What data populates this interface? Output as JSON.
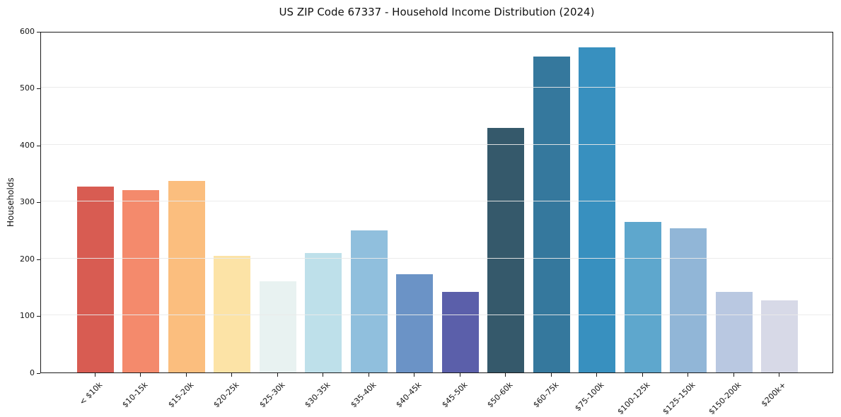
{
  "chart_data": {
    "type": "bar",
    "title": "US ZIP Code 67337 - Household Income Distribution (2024)",
    "xlabel": "",
    "ylabel": "Households",
    "categories": [
      "< $10k",
      "$10-15k",
      "$15-20k",
      "$20-25k",
      "$25-30k",
      "$30-35k",
      "$35-40k",
      "$40-45k",
      "$45-50k",
      "$50-60k",
      "$60-75k",
      "$75-100k",
      "$100-125k",
      "$125-150k",
      "$150-200k",
      "$200k+"
    ],
    "values": [
      327,
      320,
      337,
      205,
      160,
      210,
      250,
      173,
      141,
      430,
      555,
      571,
      265,
      254,
      141,
      127
    ],
    "bar_colors": [
      "#d85c52",
      "#f48a6c",
      "#fbbe7e",
      "#fce3a6",
      "#e8f2f1",
      "#bee0ea",
      "#90bfdd",
      "#6b93c6",
      "#5b5faa",
      "#35596b",
      "#35789d",
      "#3890bf",
      "#5ea7cd",
      "#91b6d7",
      "#b9c8e1",
      "#d7d9e7"
    ],
    "ylim": [
      0,
      600
    ],
    "yticks": [
      0,
      100,
      200,
      300,
      400,
      500,
      600
    ],
    "grid": "horizontal-light-gray",
    "legend": "none",
    "background_color": "#ffffff",
    "axis_color": "#1a1a1a",
    "x_tick_rotation_deg": 45
  }
}
